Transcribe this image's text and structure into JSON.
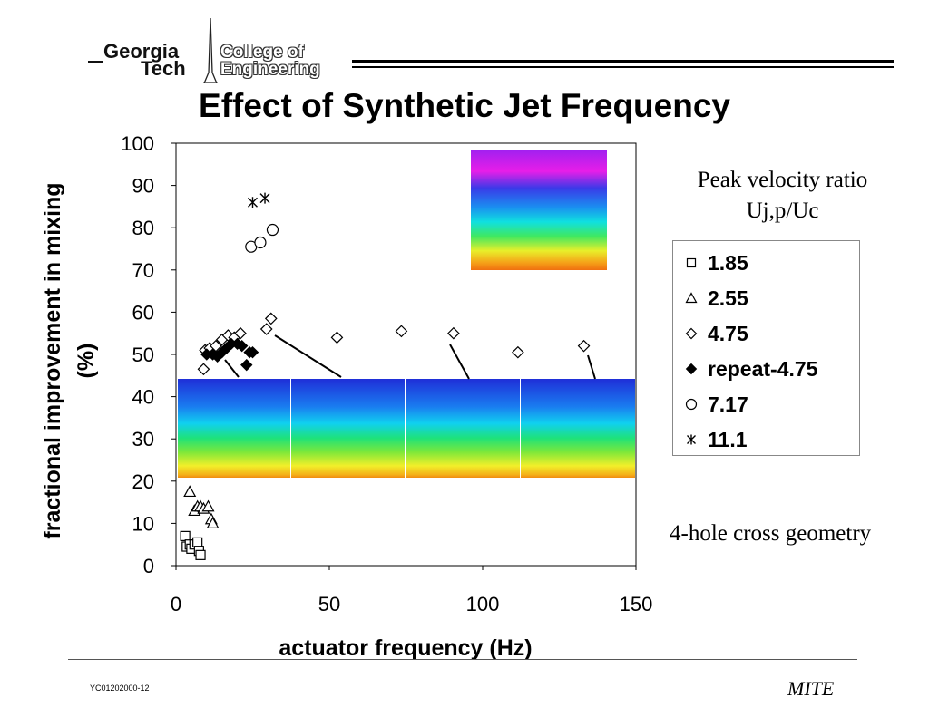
{
  "logo": {
    "georgia": "Georgia",
    "tech": "Tech",
    "college": "College of",
    "engineering": "Engineering"
  },
  "title": "Effect of Synthetic Jet Frequency",
  "legend_heading": [
    "Peak velocity ratio",
    "Uj,p/Uc"
  ],
  "annotation": "4-hole cross geometry",
  "footer": {
    "code": "YC01202000-12",
    "brand": "MITE"
  },
  "chart_data": {
    "type": "scatter",
    "title": "Effect of Synthetic Jet Frequency",
    "xlabel": "actuator frequency (Hz)",
    "ylabel_lines": [
      "fractional improvement in mixing",
      "(%)"
    ],
    "xlim": [
      0,
      150
    ],
    "ylim": [
      0,
      100
    ],
    "xticks": [
      0,
      50,
      100,
      150
    ],
    "yticks": [
      0,
      10,
      20,
      30,
      40,
      50,
      60,
      70,
      80,
      90,
      100
    ],
    "grid": false,
    "legend_position": "right, outside plot",
    "series": [
      {
        "name": "1.85",
        "marker": "square-open",
        "x": [
          3,
          3.5,
          4.5,
          5,
          6,
          7,
          7.5,
          8
        ],
        "y": [
          7,
          4.5,
          5,
          4,
          5,
          5.5,
          3.5,
          2.5
        ]
      },
      {
        "name": "2.55",
        "marker": "triangle-open",
        "x": [
          4.5,
          6,
          7,
          8,
          9,
          10.5,
          11.5,
          12
        ],
        "y": [
          17.5,
          13,
          14,
          14,
          13.5,
          14,
          11,
          10
        ]
      },
      {
        "name": "4.75",
        "marker": "diamond-open",
        "x": [
          9,
          9.5,
          11,
          13,
          15,
          17,
          19,
          21,
          29.5,
          31,
          52.5,
          73.5,
          90.5,
          111.5,
          133
        ],
        "y": [
          46.5,
          51,
          51.5,
          52,
          53.5,
          54.5,
          54,
          55,
          56,
          58.5,
          54,
          55.5,
          55,
          50.5,
          52
        ]
      },
      {
        "name": "repeat-4.75",
        "marker": "diamond-filled",
        "x": [
          10,
          12,
          13.5,
          15,
          16.5,
          18,
          20,
          21.5,
          23,
          24,
          25
        ],
        "y": [
          50,
          50,
          49.5,
          50.5,
          51.5,
          52.5,
          52.5,
          52,
          47.5,
          50.5,
          50.5
        ]
      },
      {
        "name": "7.17",
        "marker": "circle-open",
        "x": [
          24.5,
          27.5,
          31.5
        ],
        "y": [
          75.5,
          76.5,
          79.5
        ]
      },
      {
        "name": "11.1",
        "marker": "asterisk",
        "x": [
          25,
          29
        ],
        "y": [
          86,
          87
        ]
      }
    ]
  }
}
